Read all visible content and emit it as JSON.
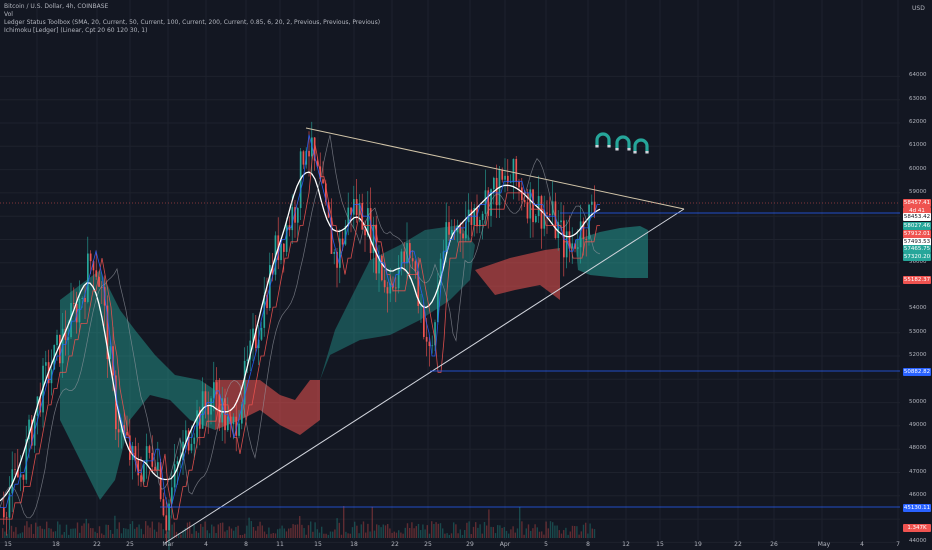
{
  "legend": {
    "symbol": "Bitcoin / U.S. Dollar, 4h, COINBASE",
    "vol": "Vol",
    "ledger": "Ledger Status Toolbox (SMA, 20, Current, 50, Current, 100, Current, 200, Current, 0.85, 6, 20, 2, Previous, Previous, Previous)",
    "ichimoku": "Ichimoku [Ledger] (Linear, Cpt 20 60 120 30, 1)"
  },
  "price_scale": {
    "currency": "USD",
    "ticks": [
      "62000",
      "61000",
      "60000",
      "59000",
      "58000",
      "57000",
      "56000",
      "55000",
      "54000",
      "53000",
      "52000",
      "51000",
      "50000",
      "49000",
      "48000",
      "47000",
      "46000",
      "45000",
      "44000"
    ],
    "top_tick": "64000",
    "tick_63": "63000"
  },
  "time_axis": [
    "15",
    "18",
    "22",
    "25",
    "Mar",
    "4",
    "8",
    "11",
    "15",
    "18",
    "22",
    "25",
    "29",
    "Apr",
    "5",
    "8",
    "12",
    "15",
    "19",
    "22",
    "26",
    "May",
    "4",
    "7"
  ],
  "price_tags": [
    {
      "text": "58457.41",
      "color": "#ef5350"
    },
    {
      "text": "4d 41",
      "color": "#ef5350"
    },
    {
      "text": "58453.42",
      "color": "#ffffff"
    },
    {
      "text": "58027.46",
      "color": "#26a69a"
    },
    {
      "text": "57912.01",
      "color": "#ef5350"
    },
    {
      "text": "57493.53",
      "color": "#ffffff"
    },
    {
      "text": "57465.75",
      "color": "#26a69a"
    },
    {
      "text": "57320.20",
      "color": "#26a69a"
    },
    {
      "text": "55182.37",
      "color": "#ef5350"
    },
    {
      "text": "50882.82",
      "color": "#2962ff"
    },
    {
      "text": "45130.11",
      "color": "#2962ff"
    },
    {
      "text": "1.347K",
      "color": "#ef5350"
    }
  ],
  "colors": {
    "background": "#131722",
    "up": "#26a69a",
    "down": "#ef5350",
    "cloud_bull": "#26a69a",
    "cloud_bear": "#ef5350",
    "trendline": "#d1c4a8",
    "hline": "#2962ff"
  },
  "icons": [
    "magnet-icon",
    "magnet-icon",
    "magnet-icon"
  ]
}
